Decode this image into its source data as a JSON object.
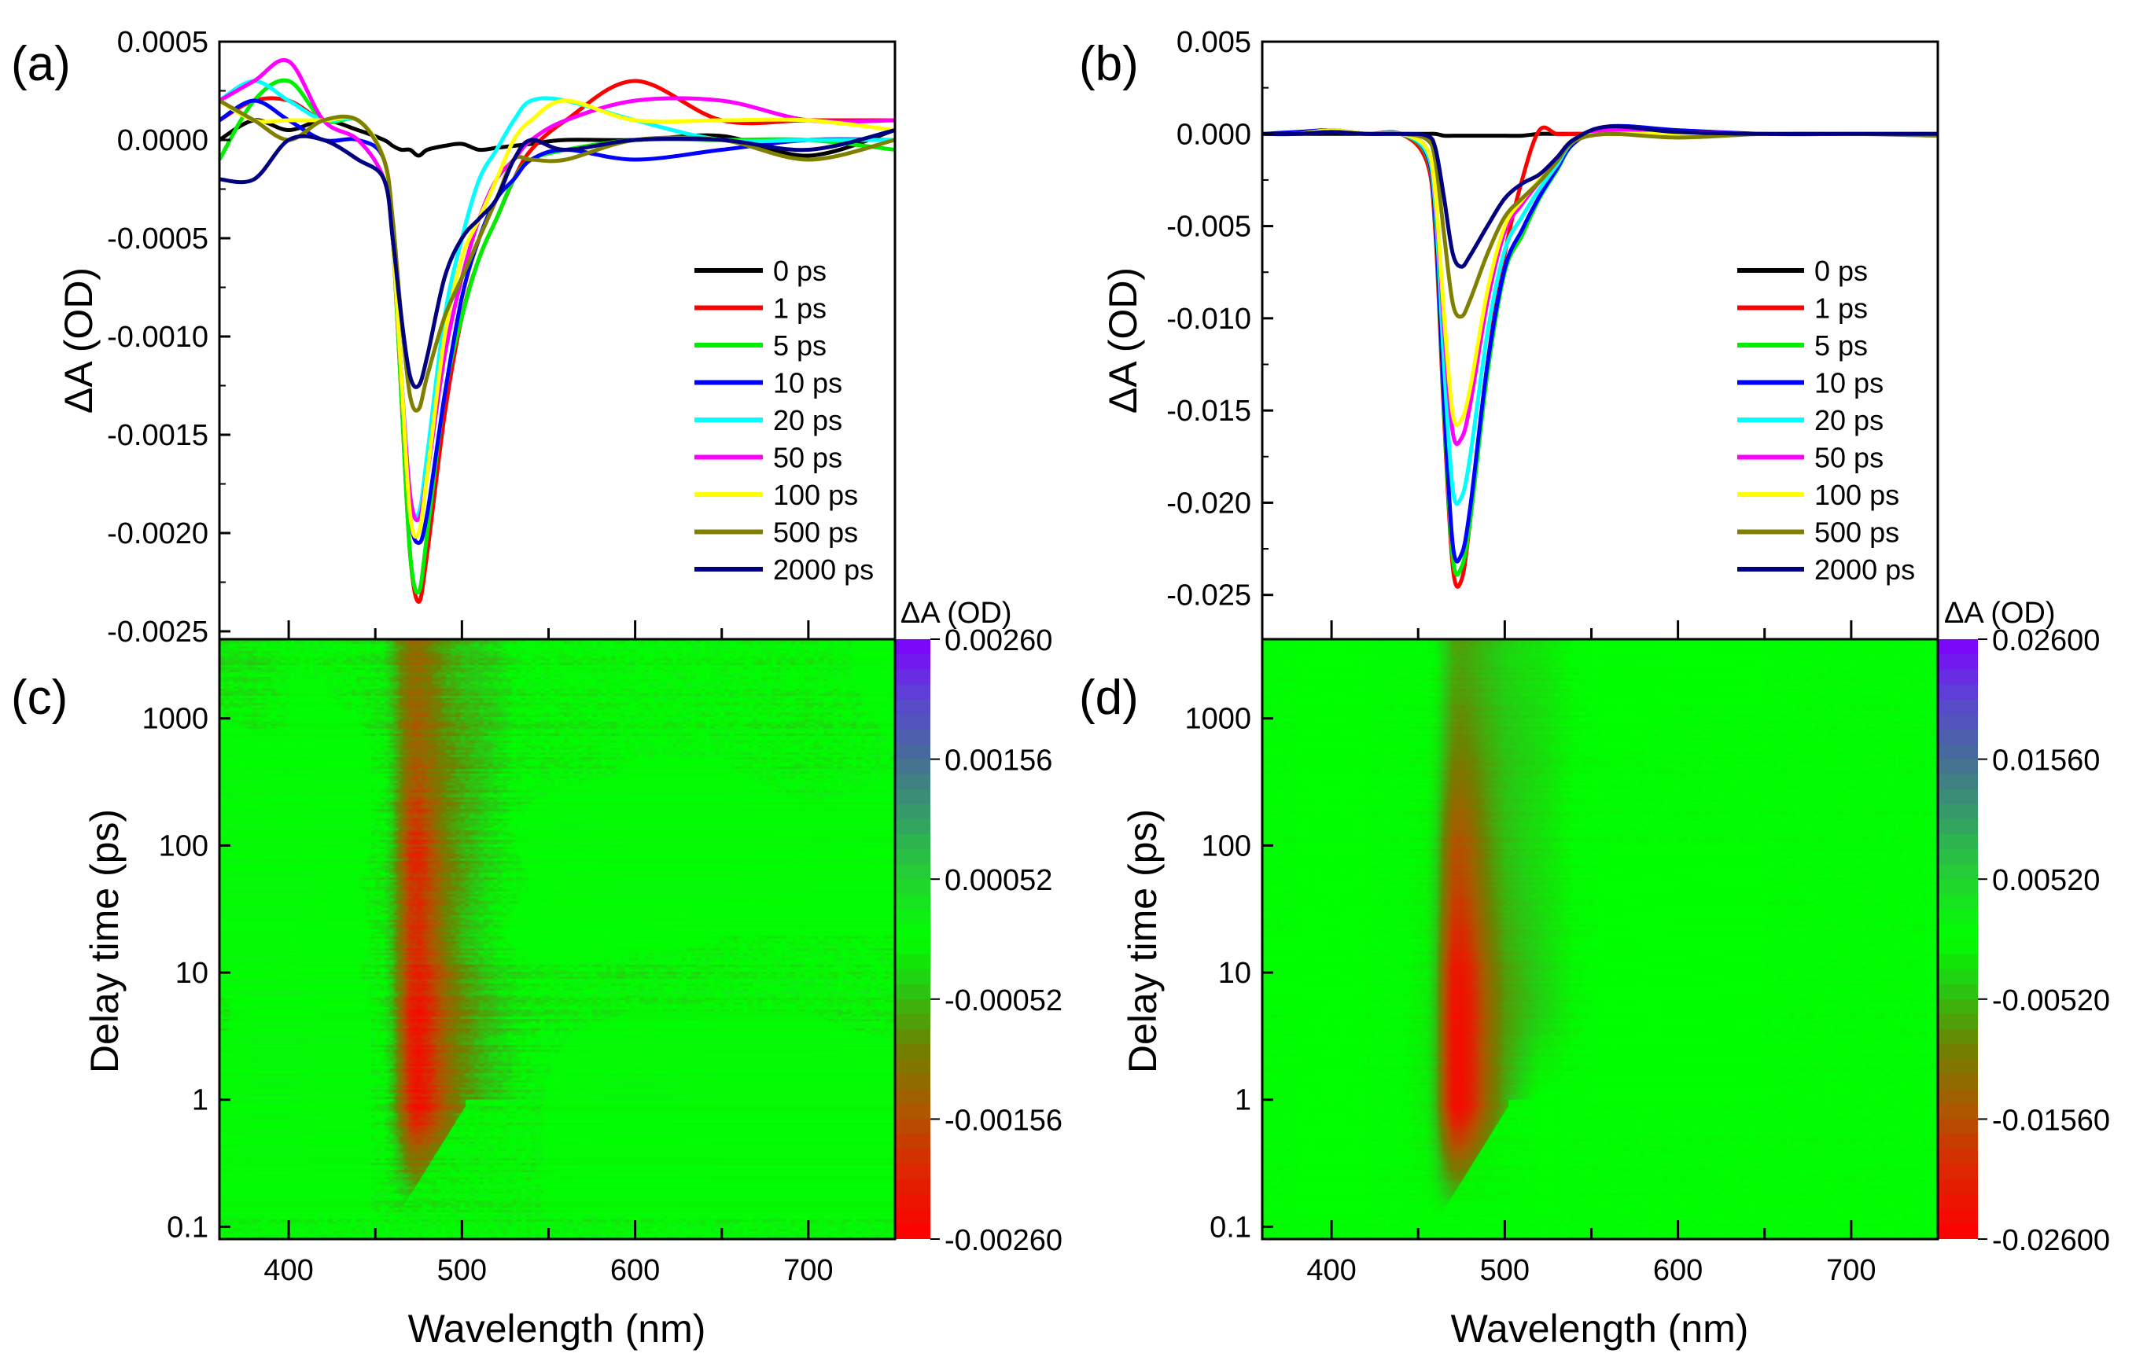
{
  "chart_data": [
    {
      "panel": "(a)",
      "type": "line",
      "xlabel": "Wavelength (nm)",
      "ylabel": "ΔA (OD)",
      "xlim": [
        360,
        750
      ],
      "ylim": [
        -0.00254,
        0.0005
      ],
      "xticks": [
        400,
        450,
        500,
        550,
        600,
        650,
        700
      ],
      "yticks": [
        0.0005,
        0.0,
        -0.0005,
        -0.001,
        -0.0015,
        -0.002,
        -0.0025
      ],
      "ytick_labels": [
        "0.0005",
        "0.0000",
        "-0.0005",
        "-0.0010",
        "-0.0015",
        "-0.0020",
        "-0.0025"
      ],
      "legend_position": "center-right",
      "x": [
        360,
        380,
        400,
        420,
        440,
        455,
        460,
        465,
        470,
        475,
        480,
        490,
        500,
        510,
        520,
        530,
        540,
        560,
        600,
        650,
        700,
        750
      ],
      "series": [
        {
          "name": "0 ps",
          "color": "#000000",
          "values": [
            0,
            0.0001,
            5e-05,
            0.0001,
            5e-05,
            0,
            -3e-05,
            -5e-05,
            -5e-05,
            -8e-05,
            -5e-05,
            -3e-05,
            -2e-05,
            -5e-05,
            -4e-05,
            -3e-05,
            -2e-05,
            0,
            0,
            2e-05,
            -8e-05,
            5e-05
          ]
        },
        {
          "name": "1 ps",
          "color": "#ff0000",
          "values": [
            0.0001,
            0.0002,
            0.0002,
            0.0001,
            0.0001,
            -0.0001,
            -0.0005,
            -0.0013,
            -0.0021,
            -0.00235,
            -0.0021,
            -0.0014,
            -0.0009,
            -0.0006,
            -0.0004,
            -0.0002,
            -5e-05,
            0.0001,
            0.0003,
            0.0001,
            0.0001,
            0.0001
          ]
        },
        {
          "name": "5 ps",
          "color": "#00ee00",
          "values": [
            -0.0001,
            0.0002,
            0.0003,
            0.0001,
            0.0001,
            -0.0001,
            -0.0005,
            -0.0013,
            -0.0021,
            -0.0023,
            -0.002,
            -0.0013,
            -0.0009,
            -0.0006,
            -0.0004,
            -0.0002,
            -0.0001,
            -5e-05,
            0,
            0,
            0,
            -5e-05
          ]
        },
        {
          "name": "10 ps",
          "color": "#0000ff",
          "values": [
            0.0001,
            0.0002,
            0.0001,
            0,
            0,
            -0.0001,
            -0.0005,
            -0.0012,
            -0.0019,
            -0.00205,
            -0.0019,
            -0.0013,
            -0.0008,
            -0.0005,
            -0.0003,
            -0.0002,
            -0.0001,
            -5e-05,
            -0.0001,
            -5e-05,
            0,
            0
          ]
        },
        {
          "name": "20 ps",
          "color": "#00ffff",
          "values": [
            0.0002,
            0.0003,
            0.0002,
            0.0001,
            0.0001,
            -0.0001,
            -0.0005,
            -0.0012,
            -0.0018,
            -0.0019,
            -0.0016,
            -0.0009,
            -0.0005,
            -0.0002,
            -5e-05,
            0.0001,
            0.0002,
            0.0002,
            0.0001,
            0,
            0,
            0
          ]
        },
        {
          "name": "50 ps",
          "color": "#ff00ff",
          "values": [
            0.0002,
            0.0003,
            0.0004,
            0.0001,
            0,
            -0.0002,
            -0.0005,
            -0.0012,
            -0.0018,
            -0.00193,
            -0.0017,
            -0.0011,
            -0.0007,
            -0.0004,
            -0.0002,
            -0.0001,
            0,
            0.0001,
            0.0002,
            0.0002,
            0.0001,
            0.0001
          ]
        },
        {
          "name": "100 ps",
          "color": "#ffff00",
          "values": [
            0.0002,
            0.0001,
            0.0001,
            0.0001,
            0.0001,
            -0.0001,
            -0.0005,
            -0.0012,
            -0.0019,
            -0.002,
            -0.0017,
            -0.001,
            -0.0006,
            -0.0004,
            -0.0002,
            0,
            0.0001,
            0.0002,
            0.0001,
            0.0001,
            0.0001,
            5e-05
          ]
        },
        {
          "name": "500 ps",
          "color": "#808000",
          "values": [
            0.0002,
            0.0001,
            0,
            0.0001,
            0.0001,
            -0.0001,
            -0.0004,
            -0.0009,
            -0.0013,
            -0.00137,
            -0.0012,
            -0.0009,
            -0.0007,
            -0.0005,
            -0.0003,
            -0.0001,
            -0.0001,
            -0.0001,
            0,
            0,
            -0.0001,
            0
          ]
        },
        {
          "name": "2000 ps",
          "color": "#000080",
          "values": [
            -0.0002,
            -0.0002,
            0,
            0,
            -0.0001,
            -0.0002,
            -0.0005,
            -0.0009,
            -0.0012,
            -0.00125,
            -0.0011,
            -0.0007,
            -0.0005,
            -0.0004,
            -0.0003,
            -0.0001,
            0,
            -5e-05,
            0,
            0,
            -5e-05,
            5e-05
          ]
        }
      ]
    },
    {
      "panel": "(b)",
      "type": "line",
      "xlabel": "Wavelength (nm)",
      "ylabel": "ΔA (OD)",
      "xlim": [
        360,
        750
      ],
      "ylim": [
        -0.0274,
        0.005
      ],
      "xticks": [
        400,
        450,
        500,
        550,
        600,
        650,
        700
      ],
      "yticks": [
        0.005,
        0.0,
        -0.005,
        -0.01,
        -0.015,
        -0.02,
        -0.025
      ],
      "ytick_labels": [
        "0.005",
        "0.000",
        "-0.005",
        "-0.010",
        "-0.015",
        "-0.020",
        "-0.025"
      ],
      "legend_position": "center-right",
      "x": [
        360,
        380,
        400,
        420,
        440,
        455,
        460,
        465,
        470,
        475,
        480,
        490,
        500,
        510,
        520,
        530,
        540,
        560,
        600,
        650,
        700,
        750
      ],
      "series": [
        {
          "name": "0 ps",
          "color": "#000000",
          "values": [
            0,
            0,
            0,
            0,
            0,
            0,
            0,
            -0.0001,
            -0.0001,
            -0.0001,
            -0.0001,
            -0.0001,
            -0.0001,
            -0.0001,
            0,
            0,
            0,
            0,
            0,
            0,
            0,
            0
          ]
        },
        {
          "name": "1 ps",
          "color": "#ff0000",
          "values": [
            0,
            0,
            0.0002,
            0,
            0,
            -0.0015,
            -0.0055,
            -0.0155,
            -0.0235,
            -0.0242,
            -0.021,
            -0.0125,
            -0.0065,
            -0.0025,
            0.0002,
            0,
            0,
            0,
            0,
            0,
            0,
            0
          ]
        },
        {
          "name": "5 ps",
          "color": "#00ee00",
          "values": [
            0,
            0,
            0.0002,
            0,
            0,
            -0.0012,
            -0.005,
            -0.015,
            -0.023,
            -0.0235,
            -0.021,
            -0.013,
            -0.0075,
            -0.0055,
            -0.0035,
            -0.002,
            -0.0005,
            0.0003,
            0.0001,
            0,
            0,
            0
          ]
        },
        {
          "name": "10 ps",
          "color": "#0000ff",
          "values": [
            0,
            0.0001,
            0.0002,
            0,
            0,
            -0.0011,
            -0.0048,
            -0.0146,
            -0.0223,
            -0.0228,
            -0.0203,
            -0.0125,
            -0.0073,
            -0.0052,
            -0.0034,
            -0.0019,
            -0.0005,
            0.0004,
            0.0002,
            0,
            0,
            0
          ]
        },
        {
          "name": "20 ps",
          "color": "#00ffff",
          "values": [
            0,
            0,
            0.0002,
            0,
            0,
            -0.001,
            -0.0041,
            -0.0126,
            -0.0193,
            -0.0197,
            -0.0175,
            -0.0108,
            -0.0063,
            -0.0045,
            -0.003,
            -0.0017,
            -0.0004,
            0.0002,
            0,
            0,
            0,
            -0.0001
          ]
        },
        {
          "name": "50 ps",
          "color": "#ff00ff",
          "values": [
            0,
            0,
            0.0002,
            0,
            0,
            -0.0008,
            -0.0035,
            -0.0106,
            -0.0162,
            -0.0165,
            -0.0147,
            -0.0091,
            -0.0053,
            -0.0038,
            -0.0026,
            -0.0015,
            -0.0003,
            0.0002,
            0.0001,
            0,
            0,
            0
          ]
        },
        {
          "name": "100 ps",
          "color": "#ffff00",
          "values": [
            0,
            0,
            0.0002,
            0,
            0,
            -0.0008,
            -0.0033,
            -0.0099,
            -0.0152,
            -0.0155,
            -0.0138,
            -0.0085,
            -0.005,
            -0.0036,
            -0.0025,
            -0.0014,
            -0.0003,
            0,
            0,
            0,
            0,
            0
          ]
        },
        {
          "name": "500 ps",
          "color": "#808000",
          "values": [
            0,
            0,
            0.0001,
            0,
            0,
            -0.0003,
            -0.0015,
            -0.0055,
            -0.0092,
            -0.0099,
            -0.009,
            -0.0065,
            -0.0045,
            -0.0035,
            -0.0026,
            -0.0015,
            -0.0004,
            0,
            -0.0002,
            0,
            0,
            -0.0001
          ]
        },
        {
          "name": "2000 ps",
          "color": "#000080",
          "values": [
            0,
            0,
            0.0001,
            0,
            0,
            -0.0001,
            -0.0008,
            -0.0035,
            -0.0065,
            -0.0072,
            -0.0066,
            -0.005,
            -0.0035,
            -0.0027,
            -0.0022,
            -0.0013,
            -0.0003,
            0.0004,
            0.0001,
            0,
            0,
            0
          ]
        }
      ]
    },
    {
      "panel": "(c)",
      "type": "heatmap",
      "source_spectra_panel": "(a)",
      "xlabel": "Wavelength (nm)",
      "ylabel": "Delay time (ps)",
      "xlim": [
        360,
        750
      ],
      "ylim": [
        0.08,
        4200
      ],
      "yscale": "log",
      "xticks": [
        400,
        450,
        500,
        550,
        600,
        650,
        700
      ],
      "xtick_labels": [
        "400",
        "500",
        "600",
        "700"
      ],
      "yticks": [
        0.1,
        1,
        10,
        100,
        1000
      ],
      "ytick_labels": [
        "0.1",
        "1",
        "10",
        "100",
        "1000"
      ],
      "colorbar": {
        "title": "ΔA (OD)",
        "range": [
          -0.0026,
          0.0026
        ],
        "ticks": [
          0.0026,
          0.00156,
          0.00052,
          -0.00052,
          -0.00156,
          -0.0026
        ],
        "tick_labels": [
          "0.00260",
          "0.00156",
          "0.00052",
          "-0.00052",
          "-0.00156",
          "-0.00260"
        ]
      }
    },
    {
      "panel": "(d)",
      "type": "heatmap",
      "source_spectra_panel": "(b)",
      "xlabel": "Wavelength (nm)",
      "ylabel": "Delay time (ps)",
      "xlim": [
        360,
        750
      ],
      "ylim": [
        0.08,
        4200
      ],
      "yscale": "log",
      "xticks": [
        400,
        450,
        500,
        550,
        600,
        650,
        700
      ],
      "xtick_labels": [
        "400",
        "500",
        "600",
        "700"
      ],
      "yticks": [
        0.1,
        1,
        10,
        100,
        1000
      ],
      "ytick_labels": [
        "0.1",
        "1",
        "10",
        "100",
        "1000"
      ],
      "colorbar": {
        "title": "ΔA (OD)",
        "range": [
          -0.026,
          0.026
        ],
        "ticks": [
          0.026,
          0.0156,
          0.0052,
          -0.0052,
          -0.0156,
          -0.026
        ],
        "tick_labels": [
          "0.02600",
          "0.01560",
          "0.00520",
          "-0.00520",
          "-0.01560",
          "-0.02600"
        ]
      }
    }
  ]
}
